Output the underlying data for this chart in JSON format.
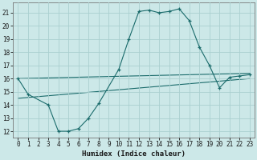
{
  "xlabel": "Humidex (Indice chaleur)",
  "background_color": "#cce8e8",
  "grid_color": "#aacfcf",
  "line_color": "#1a6b6b",
  "xlim": [
    -0.5,
    23.5
  ],
  "ylim": [
    11.5,
    21.8
  ],
  "xticks": [
    0,
    1,
    2,
    3,
    4,
    5,
    6,
    7,
    8,
    9,
    10,
    11,
    12,
    13,
    14,
    15,
    16,
    17,
    18,
    19,
    20,
    21,
    22,
    23
  ],
  "yticks": [
    12,
    13,
    14,
    15,
    16,
    17,
    18,
    19,
    20,
    21
  ],
  "curve1_x": [
    0,
    1,
    3,
    4,
    5,
    6,
    7,
    8,
    10,
    11,
    12,
    13,
    14,
    15,
    16,
    17,
    18,
    19,
    20,
    21,
    22,
    23
  ],
  "curve1_y": [
    16,
    14.8,
    14,
    12,
    12,
    12.2,
    13,
    14.1,
    16.7,
    19,
    21.1,
    21.2,
    21.0,
    21.1,
    21.3,
    20.4,
    18.4,
    17.0,
    15.3,
    16.1,
    16.2,
    16.3
  ],
  "curve2_x": [
    0,
    23
  ],
  "curve2_y": [
    16.0,
    16.4
  ],
  "curve3_x": [
    0,
    23
  ],
  "curve3_y": [
    14.5,
    16.0
  ]
}
